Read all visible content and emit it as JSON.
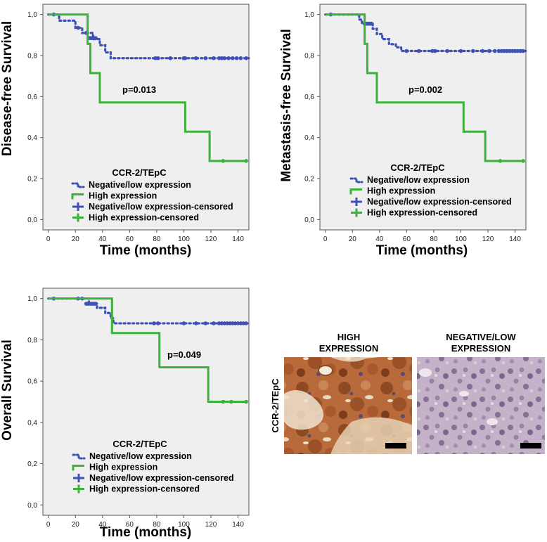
{
  "colors": {
    "negative_low": "#3f51b5",
    "high": "#3bb33b",
    "panel_bg": "#efefef",
    "axis": "#555555"
  },
  "chart_data": [
    {
      "type": "line",
      "chart_kind": "kaplan-meier",
      "ylabel": "Disease-free Survival",
      "xlabel": "Time (months)",
      "xlim": [
        -4,
        148
      ],
      "ylim": [
        -0.05,
        1.05
      ],
      "x_ticks": [
        "0",
        "20",
        "40",
        "60",
        "80",
        "100",
        "120",
        "140"
      ],
      "y_ticks": [
        "0,0",
        "0,2",
        "0,4",
        "0,6",
        "0,8",
        "1,0"
      ],
      "pvalue_text": "p=0.013",
      "legend": {
        "title": "CCR-2/TEpC",
        "items": [
          "Negative/low expression",
          "High expression",
          "Negative/low expression-censored",
          "High expression-censored"
        ]
      },
      "series": [
        {
          "name": "Negative/low expression",
          "steps": [
            [
              0,
              1.0
            ],
            [
              8,
              0.97
            ],
            [
              20,
              0.935
            ],
            [
              25,
              0.91
            ],
            [
              33,
              0.88
            ],
            [
              38,
              0.85
            ],
            [
              42,
              0.815
            ],
            [
              46,
              0.787
            ],
            [
              148,
              0.787
            ]
          ],
          "censored": [
            [
              4,
              1.0
            ],
            [
              22,
              0.935
            ],
            [
              28,
              0.91
            ],
            [
              30,
              0.885
            ],
            [
              31,
              0.885
            ],
            [
              32,
              0.885
            ],
            [
              33,
              0.885
            ],
            [
              34,
              0.885
            ],
            [
              35,
              0.885
            ],
            [
              79,
              0.787
            ],
            [
              81,
              0.787
            ],
            [
              90,
              0.787
            ],
            [
              100,
              0.787
            ],
            [
              101,
              0.787
            ],
            [
              109,
              0.787
            ],
            [
              116,
              0.787
            ],
            [
              122,
              0.787
            ],
            [
              126,
              0.787
            ],
            [
              128,
              0.787
            ],
            [
              130,
              0.787
            ],
            [
              133,
              0.787
            ],
            [
              136,
              0.787
            ],
            [
              139,
              0.787
            ],
            [
              142,
              0.787
            ],
            [
              146,
              0.787
            ]
          ]
        },
        {
          "name": "High expression",
          "steps": [
            [
              0,
              1.0
            ],
            [
              29,
              0.857
            ],
            [
              31,
              0.714
            ],
            [
              38,
              0.571
            ],
            [
              101,
              0.429
            ],
            [
              119,
              0.286
            ],
            [
              146,
              0.286
            ]
          ],
          "censored": [
            [
              129,
              0.286
            ],
            [
              146,
              0.286
            ]
          ]
        }
      ]
    },
    {
      "type": "line",
      "chart_kind": "kaplan-meier",
      "ylabel": "Metastasis-free Survival",
      "xlabel": "Time (months)",
      "xlim": [
        -4,
        148
      ],
      "ylim": [
        -0.05,
        1.05
      ],
      "x_ticks": [
        "0",
        "20",
        "40",
        "60",
        "80",
        "100",
        "120",
        "140"
      ],
      "y_ticks": [
        "0,0",
        "0,2",
        "0,4",
        "0,6",
        "0,8",
        "1,0"
      ],
      "pvalue_text": "p=0.002",
      "legend": {
        "title": "CCR-2/TEpC",
        "items": [
          "Negative/low expression",
          "High expression",
          "Negative/low expression-censored",
          "High expression-censored"
        ]
      },
      "series": [
        {
          "name": "Negative/low expression",
          "steps": [
            [
              0,
              1.0
            ],
            [
              25,
              0.975
            ],
            [
              27,
              0.955
            ],
            [
              35,
              0.93
            ],
            [
              38,
              0.905
            ],
            [
              42,
              0.88
            ],
            [
              47,
              0.855
            ],
            [
              52,
              0.84
            ],
            [
              56,
              0.822
            ],
            [
              148,
              0.822
            ]
          ],
          "censored": [
            [
              4,
              1.0
            ],
            [
              29,
              0.955
            ],
            [
              30,
              0.955
            ],
            [
              31,
              0.955
            ],
            [
              32,
              0.955
            ],
            [
              33,
              0.955
            ],
            [
              34,
              0.955
            ],
            [
              60,
              0.822
            ],
            [
              69,
              0.822
            ],
            [
              79,
              0.822
            ],
            [
              81,
              0.822
            ],
            [
              90,
              0.822
            ],
            [
              100,
              0.822
            ],
            [
              109,
              0.822
            ],
            [
              116,
              0.822
            ],
            [
              121,
              0.822
            ],
            [
              125,
              0.822
            ],
            [
              128,
              0.822
            ],
            [
              130,
              0.822
            ],
            [
              132,
              0.822
            ],
            [
              134,
              0.822
            ],
            [
              136,
              0.822
            ],
            [
              138,
              0.822
            ],
            [
              140,
              0.822
            ],
            [
              142,
              0.822
            ],
            [
              144,
              0.822
            ],
            [
              146,
              0.822
            ]
          ]
        },
        {
          "name": "High expression",
          "steps": [
            [
              0,
              1.0
            ],
            [
              29,
              0.857
            ],
            [
              31,
              0.714
            ],
            [
              38,
              0.571
            ],
            [
              102,
              0.429
            ],
            [
              118,
              0.286
            ],
            [
              146,
              0.286
            ]
          ],
          "censored": [
            [
              129,
              0.286
            ],
            [
              146,
              0.286
            ]
          ]
        }
      ]
    },
    {
      "type": "line",
      "chart_kind": "kaplan-meier",
      "ylabel": "Overall Survival",
      "xlabel": "Time (months)",
      "xlim": [
        -4,
        148
      ],
      "ylim": [
        -0.05,
        1.05
      ],
      "x_ticks": [
        "0",
        "20",
        "40",
        "60",
        "80",
        "100",
        "120",
        "140"
      ],
      "y_ticks": [
        "0,0",
        "0,2",
        "0,4",
        "0,6",
        "0,8",
        "1,0"
      ],
      "pvalue_text": "p=0.049",
      "legend": {
        "title": "CCR-2/TEpC",
        "items": [
          "Negative/low expression",
          "High expression",
          "Negative/low expression-censored",
          "High expression-censored"
        ]
      },
      "series": [
        {
          "name": "Negative/low expression",
          "steps": [
            [
              0,
              1.0
            ],
            [
              30,
              0.975
            ],
            [
              36,
              0.955
            ],
            [
              42,
              0.93
            ],
            [
              46,
              0.905
            ],
            [
              48,
              0.88
            ],
            [
              148,
              0.88
            ]
          ],
          "censored": [
            [
              4,
              1.0
            ],
            [
              22,
              1.0
            ],
            [
              25,
              1.0
            ],
            [
              28,
              0.975
            ],
            [
              29,
              0.975
            ],
            [
              30,
              0.975
            ],
            [
              31,
              0.975
            ],
            [
              32,
              0.975
            ],
            [
              33,
              0.975
            ],
            [
              34,
              0.975
            ],
            [
              35,
              0.975
            ],
            [
              78,
              0.88
            ],
            [
              81,
              0.88
            ],
            [
              100,
              0.88
            ],
            [
              109,
              0.88
            ],
            [
              116,
              0.88
            ],
            [
              122,
              0.88
            ],
            [
              126,
              0.88
            ],
            [
              128,
              0.88
            ],
            [
              130,
              0.88
            ],
            [
              132,
              0.88
            ],
            [
              134,
              0.88
            ],
            [
              136,
              0.88
            ],
            [
              138,
              0.88
            ],
            [
              140,
              0.88
            ],
            [
              142,
              0.88
            ],
            [
              144,
              0.88
            ],
            [
              146,
              0.88
            ]
          ]
        },
        {
          "name": "High expression",
          "steps": [
            [
              0,
              1.0
            ],
            [
              47,
              0.833
            ],
            [
              82,
              0.667
            ],
            [
              118,
              0.5
            ],
            [
              146,
              0.5
            ]
          ],
          "censored": [
            [
              129,
              0.5
            ],
            [
              135,
              0.5
            ],
            [
              146,
              0.5
            ]
          ]
        }
      ]
    }
  ],
  "histology": {
    "row_label": "CCR-2/TEpC",
    "high_title_line1": "HIGH",
    "high_title_line2": "EXPRESSION",
    "low_title_line1": "NEGATIVE/LOW",
    "low_title_line2": "EXPRESSION"
  }
}
